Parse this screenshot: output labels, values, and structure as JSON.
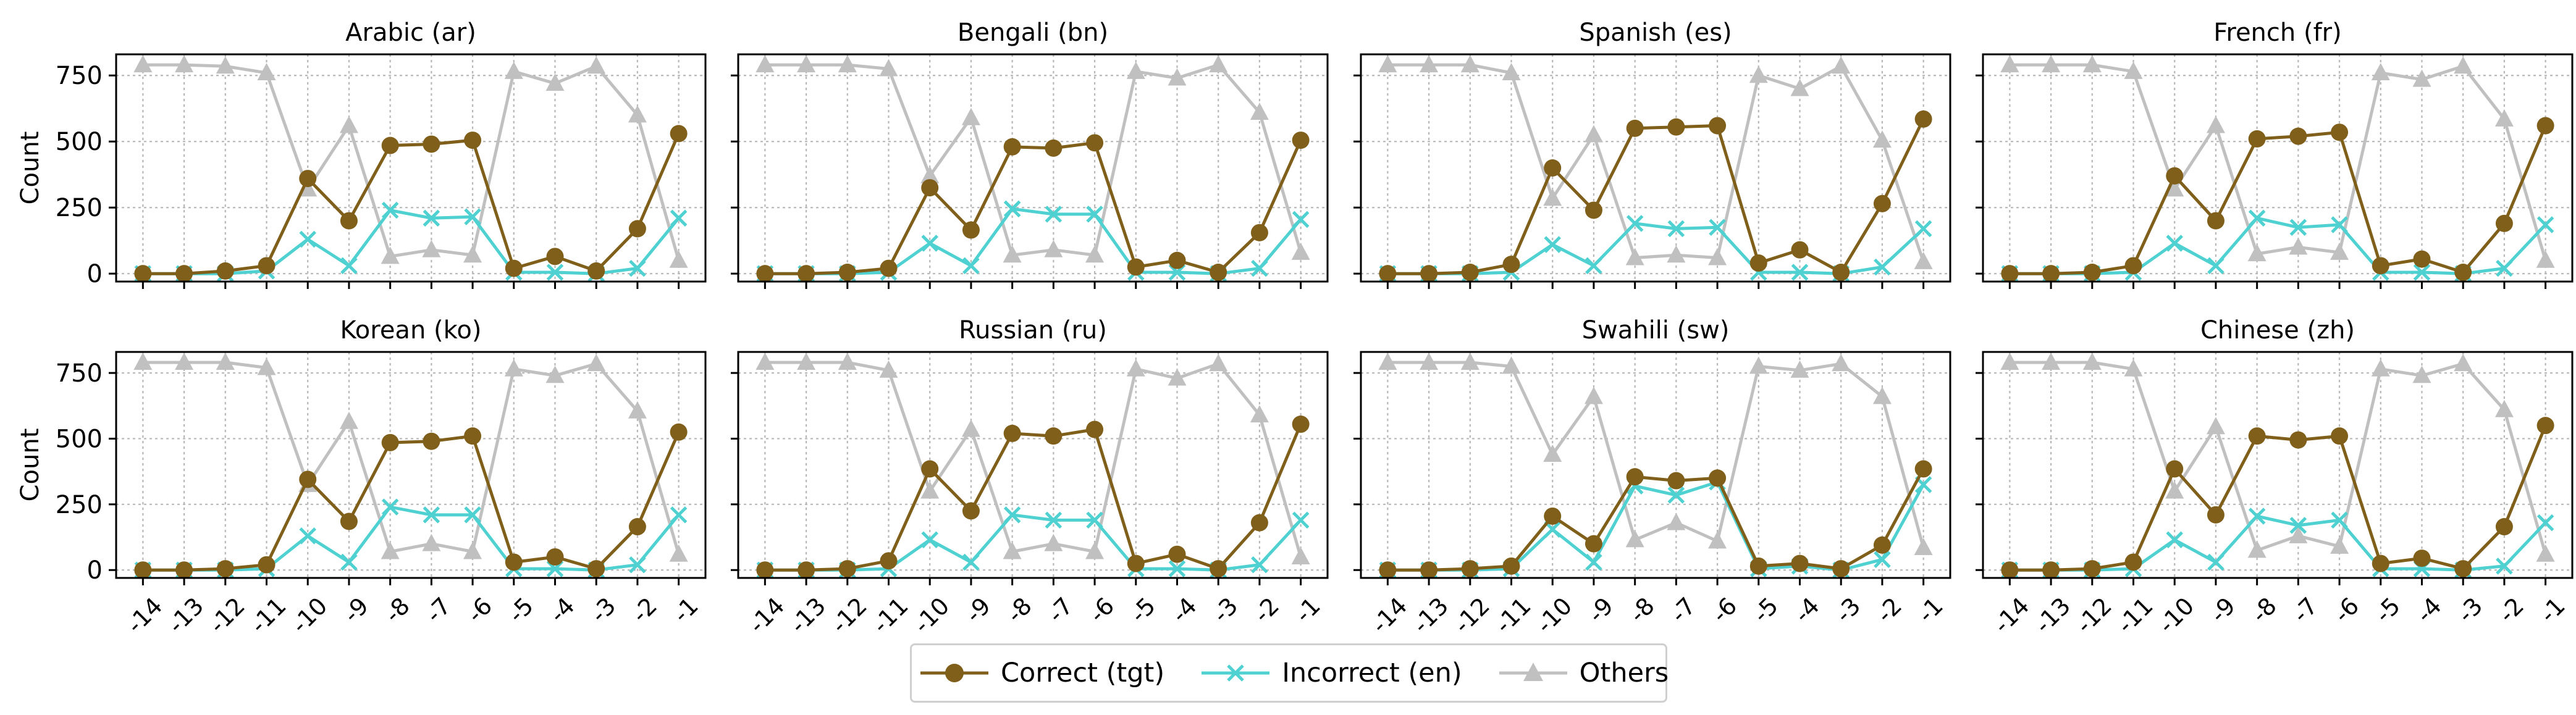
{
  "chart_data": {
    "type": "line",
    "layout": "2x4 small multiples",
    "x_ticks": [
      "-14",
      "-13",
      "-12",
      "-11",
      "-10",
      "-9",
      "-8",
      "-7",
      "-6",
      "-5",
      "-4",
      "-3",
      "-2",
      "-1"
    ],
    "x": [
      -14,
      -13,
      -12,
      -11,
      -10,
      -9,
      -8,
      -7,
      -6,
      -5,
      -4,
      -3,
      -2,
      -1
    ],
    "ylabel": "Count",
    "ylim": [
      -30,
      830
    ],
    "y_ticks": [
      0,
      250,
      500,
      750
    ],
    "grid": true,
    "legend_position": "bottom-center",
    "series_styles": [
      {
        "name": "Correct (tgt)",
        "color": "#7f5f1a",
        "marker": "circle"
      },
      {
        "name": "Incorrect (en)",
        "color": "#4fd1d1",
        "marker": "x"
      },
      {
        "name": "Others",
        "color": "#c0c0c0",
        "marker": "triangle"
      }
    ],
    "panels": [
      {
        "title": "Arabic (ar)",
        "series": [
          {
            "name": "Correct (tgt)",
            "values": [
              0,
              0,
              10,
              30,
              360,
              200,
              485,
              490,
              505,
              20,
              65,
              10,
              170,
              530
            ]
          },
          {
            "name": "Incorrect (en)",
            "values": [
              0,
              0,
              0,
              10,
              130,
              30,
              240,
              210,
              215,
              5,
              5,
              0,
              20,
              210
            ]
          },
          {
            "name": "Others",
            "values": [
              790,
              790,
              785,
              760,
              320,
              560,
              65,
              90,
              70,
              765,
              720,
              785,
              600,
              50
            ]
          }
        ]
      },
      {
        "title": "Bengali (bn)",
        "series": [
          {
            "name": "Correct (tgt)",
            "values": [
              0,
              0,
              5,
              20,
              325,
              165,
              480,
              475,
              495,
              25,
              50,
              5,
              155,
              505
            ]
          },
          {
            "name": "Incorrect (en)",
            "values": [
              0,
              0,
              0,
              5,
              115,
              30,
              245,
              225,
              225,
              5,
              5,
              0,
              20,
              205
            ]
          },
          {
            "name": "Others",
            "values": [
              790,
              790,
              790,
              775,
              370,
              590,
              70,
              90,
              70,
              765,
              740,
              790,
              610,
              80
            ]
          }
        ]
      },
      {
        "title": "Spanish (es)",
        "series": [
          {
            "name": "Correct (tgt)",
            "values": [
              0,
              0,
              5,
              35,
              400,
              240,
              550,
              555,
              560,
              40,
              90,
              5,
              265,
              585
            ]
          },
          {
            "name": "Incorrect (en)",
            "values": [
              0,
              0,
              0,
              5,
              110,
              30,
              190,
              170,
              175,
              5,
              5,
              0,
              25,
              170
            ]
          },
          {
            "name": "Others",
            "values": [
              790,
              790,
              790,
              760,
              285,
              525,
              60,
              70,
              60,
              750,
              700,
              785,
              505,
              45
            ]
          }
        ]
      },
      {
        "title": "French (fr)",
        "series": [
          {
            "name": "Correct (tgt)",
            "values": [
              0,
              0,
              5,
              30,
              370,
              200,
              510,
              520,
              535,
              30,
              55,
              5,
              190,
              560
            ]
          },
          {
            "name": "Incorrect (en)",
            "values": [
              0,
              0,
              0,
              5,
              115,
              30,
              210,
              175,
              185,
              5,
              5,
              0,
              20,
              185
            ]
          },
          {
            "name": "Others",
            "values": [
              790,
              790,
              790,
              765,
              320,
              560,
              75,
              100,
              80,
              760,
              735,
              785,
              585,
              50
            ]
          }
        ]
      },
      {
        "title": "Korean (ko)",
        "series": [
          {
            "name": "Correct (tgt)",
            "values": [
              0,
              0,
              5,
              20,
              345,
              185,
              485,
              490,
              510,
              30,
              50,
              5,
              165,
              525
            ]
          },
          {
            "name": "Incorrect (en)",
            "values": [
              0,
              0,
              0,
              5,
              130,
              30,
              240,
              210,
              210,
              5,
              5,
              0,
              20,
              210
            ]
          },
          {
            "name": "Others",
            "values": [
              790,
              790,
              790,
              770,
              325,
              565,
              70,
              100,
              70,
              765,
              740,
              785,
              605,
              60
            ]
          }
        ]
      },
      {
        "title": "Russian (ru)",
        "series": [
          {
            "name": "Correct (tgt)",
            "values": [
              0,
              0,
              5,
              35,
              385,
              225,
              520,
              510,
              535,
              25,
              60,
              5,
              180,
              555
            ]
          },
          {
            "name": "Incorrect (en)",
            "values": [
              0,
              0,
              0,
              5,
              115,
              30,
              210,
              190,
              190,
              5,
              5,
              0,
              20,
              190
            ]
          },
          {
            "name": "Others",
            "values": [
              790,
              790,
              790,
              760,
              300,
              535,
              70,
              100,
              70,
              765,
              730,
              785,
              590,
              50
            ]
          }
        ]
      },
      {
        "title": "Swahili (sw)",
        "series": [
          {
            "name": "Correct (tgt)",
            "values": [
              0,
              0,
              5,
              15,
              205,
              100,
              355,
              340,
              350,
              15,
              25,
              5,
              95,
              385
            ]
          },
          {
            "name": "Incorrect (en)",
            "values": [
              0,
              0,
              0,
              5,
              155,
              30,
              320,
              285,
              335,
              5,
              15,
              0,
              40,
              325
            ]
          },
          {
            "name": "Others",
            "values": [
              790,
              790,
              790,
              775,
              440,
              660,
              115,
              180,
              110,
              775,
              760,
              785,
              660,
              85
            ]
          }
        ]
      },
      {
        "title": "Chinese (zh)",
        "series": [
          {
            "name": "Correct (tgt)",
            "values": [
              0,
              0,
              5,
              30,
              385,
              210,
              510,
              495,
              510,
              25,
              45,
              5,
              165,
              550
            ]
          },
          {
            "name": "Incorrect (en)",
            "values": [
              0,
              0,
              0,
              5,
              115,
              30,
              205,
              170,
              190,
              5,
              5,
              0,
              15,
              180
            ]
          },
          {
            "name": "Others",
            "values": [
              790,
              790,
              790,
              765,
              300,
              545,
              75,
              130,
              90,
              765,
              740,
              785,
              610,
              60
            ]
          }
        ]
      }
    ]
  }
}
